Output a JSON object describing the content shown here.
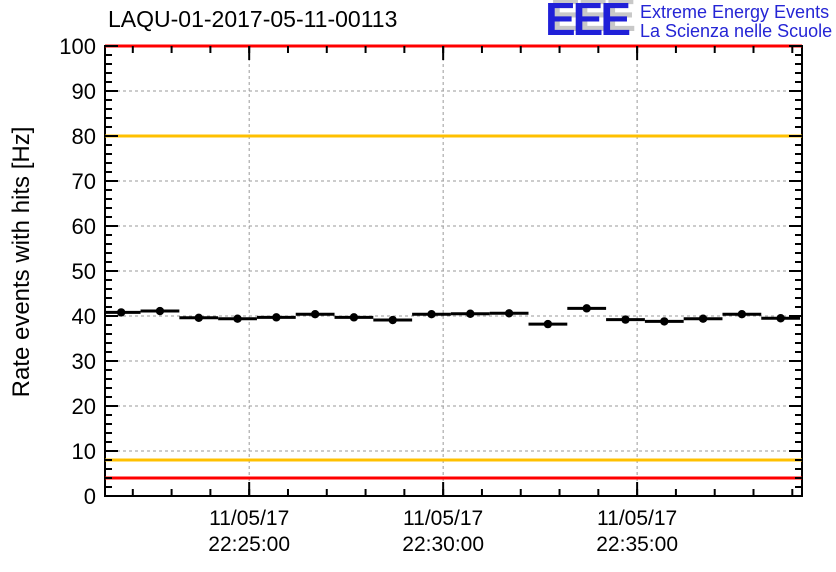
{
  "header": {
    "title": "LAQU-01-2017-05-11-00113",
    "logo": {
      "letters": "EEE",
      "line1": "Extreme Energy Events",
      "line2": "La Scienza nelle Scuole",
      "blue": "#2020d8"
    }
  },
  "chart_data": {
    "type": "scatter",
    "title": "LAQU-01-2017-05-11-00113",
    "xlabel": "",
    "ylabel": "Rate events with hits [Hz]",
    "ylim": [
      0,
      100
    ],
    "y_major_step": 10,
    "y_minor_step": 2,
    "xlim": [
      "22:21:17",
      "22:39:15"
    ],
    "x_minor_step_s": 60,
    "grid": true,
    "grid_color": "#9a9a9a",
    "frame_color": "#000000",
    "x_ticks": [
      {
        "date": "11/05/17",
        "time": "22:25:00"
      },
      {
        "date": "11/05/17",
        "time": "22:30:00"
      },
      {
        "date": "11/05/17",
        "time": "22:35:00"
      }
    ],
    "threshold_lines": [
      {
        "y": 100,
        "color": "#ff0000"
      },
      {
        "y": 80,
        "color": "#ffc000"
      },
      {
        "y": 8,
        "color": "#ffc000"
      },
      {
        "y": 4,
        "color": "#ff0000"
      }
    ],
    "series": [
      {
        "name": "rate-events-with-hits",
        "marker": "circle",
        "color": "#000000",
        "x_err_s": 30,
        "times": [
          "22:21:42",
          "22:22:42",
          "22:23:42",
          "22:24:42",
          "22:25:42",
          "22:26:42",
          "22:27:42",
          "22:28:42",
          "22:29:42",
          "22:30:42",
          "22:31:42",
          "22:32:42",
          "22:33:42",
          "22:34:42",
          "22:35:42",
          "22:36:42",
          "22:37:42",
          "22:38:42"
        ],
        "values": [
          40.8,
          41.1,
          39.6,
          39.4,
          39.7,
          40.4,
          39.7,
          39.1,
          40.4,
          40.5,
          40.6,
          38.2,
          41.7,
          39.2,
          38.8,
          39.4,
          40.4,
          39.5
        ]
      }
    ]
  }
}
